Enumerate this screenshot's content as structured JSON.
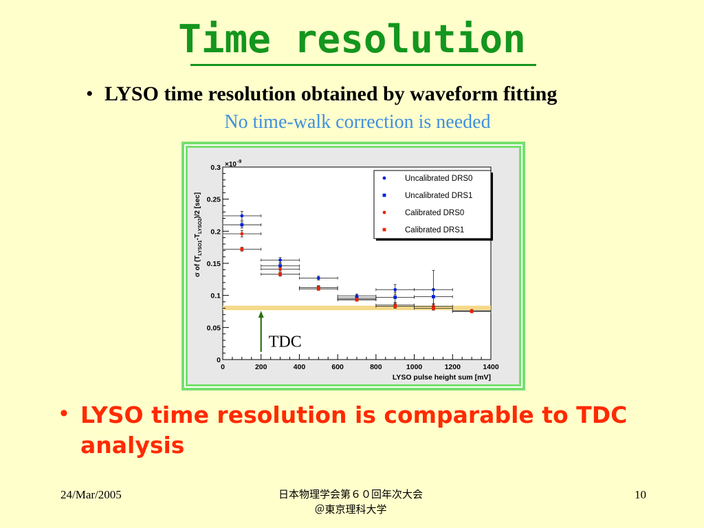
{
  "slide": {
    "title": "Time resolution",
    "bullet1": "LYSO time resolution obtained by waveform fitting",
    "sub1": "No time-walk correction is needed",
    "bullet2": "LYSO time resolution is comparable to TDC analysis",
    "footer_date": "24/Mar/2005",
    "footer_center_line1": "日本物理学会第６０回年次大会",
    "footer_center_line2": "＠東京理科大学",
    "footer_page": "10"
  },
  "colors": {
    "title": "#14961e",
    "sub1": "#3f8fe0",
    "bullet2": "#ff2a00",
    "frame": "#76e06d",
    "tdc_band": "#f5d98a",
    "arrow": "#2c6e12"
  },
  "chart_data": {
    "type": "scatter",
    "xlabel": "LYSO pulse height sum [mV]",
    "ylabel_main": "σ of (T",
    "ylabel_sub1": "LYSO1",
    "ylabel_mid": "-T",
    "ylabel_sub2": "LYSO2",
    "ylabel_tail": ")/2  [sec]",
    "y_multiplier": "×10",
    "y_multiplier_exp": "-9",
    "xlim": [
      0,
      1400
    ],
    "ylim": [
      0,
      0.3
    ],
    "xticks": [
      "0",
      "200",
      "400",
      "600",
      "800",
      "1000",
      "1200",
      "1400"
    ],
    "yticks": [
      "0",
      "0.05",
      "0.1",
      "0.15",
      "0.2",
      "0.25",
      "0.3"
    ],
    "legend_position": "top-right",
    "tdc_band": [
      0.077,
      0.084
    ],
    "tdc_label": "TDC",
    "series": [
      {
        "name": "Uncalibrated DRS0",
        "color": "#0022dd",
        "marker": "circle",
        "x": [
          100,
          300,
          500,
          700,
          900,
          1100
        ],
        "y": [
          0.224,
          0.155,
          0.127,
          0.099,
          0.109,
          0.109
        ],
        "yerr": [
          0.007,
          0.004,
          0.003,
          0.003,
          0.008,
          0.03
        ],
        "xerr": [
          100,
          100,
          100,
          100,
          100,
          100
        ]
      },
      {
        "name": "Uncalibrated DRS1",
        "color": "#0022dd",
        "marker": "square",
        "x": [
          100,
          300,
          500,
          700,
          900,
          1100
        ],
        "y": [
          0.21,
          0.146,
          0.112,
          0.096,
          0.097,
          0.098
        ],
        "yerr": [
          0.005,
          0.004,
          0.003,
          0.003,
          0.008,
          0.012
        ],
        "xerr": [
          100,
          100,
          100,
          100,
          100,
          100
        ]
      },
      {
        "name": "Calibrated DRS0",
        "color": "#ee2200",
        "marker": "circle",
        "x": [
          100,
          300,
          500,
          700,
          900,
          1100,
          1300
        ],
        "y": [
          0.196,
          0.141,
          0.112,
          0.094,
          0.085,
          0.083,
          0.076
        ],
        "yerr": [
          0.005,
          0.003,
          0.003,
          0.002,
          0.003,
          0.004,
          0.002
        ],
        "xerr": [
          100,
          100,
          100,
          100,
          100,
          100,
          100
        ]
      },
      {
        "name": "Calibrated DRS1",
        "color": "#ee2200",
        "marker": "square",
        "x": [
          100,
          300,
          500,
          700,
          900,
          1100,
          1300
        ],
        "y": [
          0.172,
          0.133,
          0.11,
          0.093,
          0.083,
          0.08,
          0.075
        ],
        "yerr": [
          0.003,
          0.003,
          0.002,
          0.002,
          0.003,
          0.003,
          0.002
        ],
        "xerr": [
          100,
          100,
          100,
          100,
          100,
          100,
          100
        ]
      }
    ]
  }
}
